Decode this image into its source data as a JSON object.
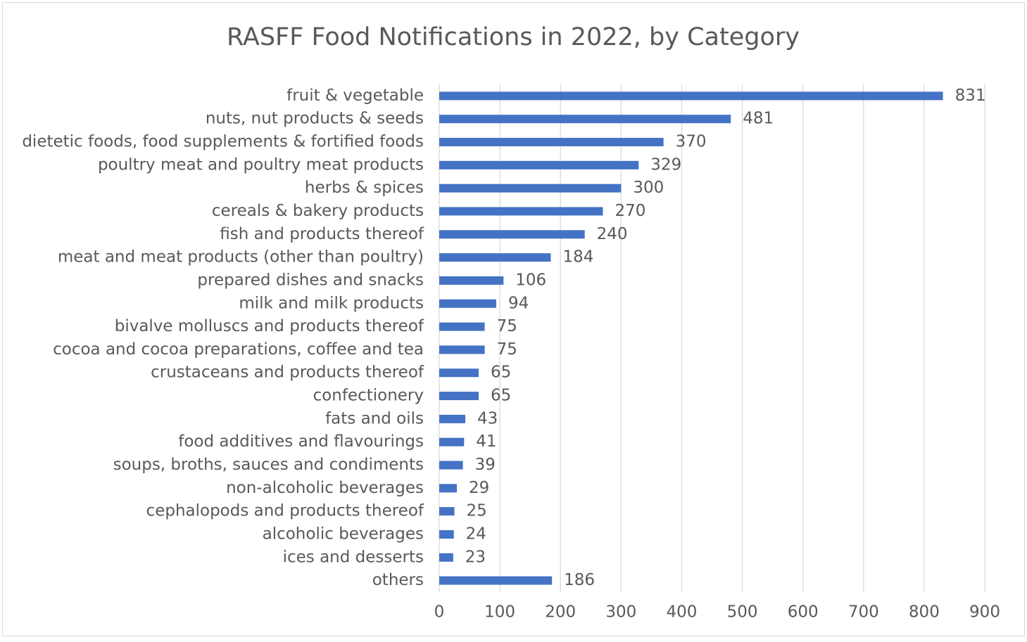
{
  "chart_data": {
    "type": "bar",
    "title": "RASFF Food Notifications in 2022, by Category",
    "categories": [
      "fruit & vegetable",
      "nuts, nut products & seeds",
      "dietetic foods, food supplements & fortified foods",
      "poultry meat and poultry meat products",
      "herbs & spices",
      "cereals & bakery products",
      "fish and products thereof",
      "meat and meat products (other than poultry)",
      "prepared dishes and snacks",
      "milk and milk products",
      "bivalve molluscs and products thereof",
      "cocoa and cocoa preparations, coffee and tea",
      "crustaceans and products thereof",
      "confectionery",
      "fats and oils",
      "food additives and flavourings",
      "soups, broths, sauces and condiments",
      "non-alcoholic beverages",
      "cephalopods and products thereof",
      "alcoholic beverages",
      "ices and desserts",
      "others"
    ],
    "values": [
      831,
      481,
      370,
      329,
      300,
      270,
      240,
      184,
      106,
      94,
      75,
      75,
      65,
      65,
      43,
      41,
      39,
      29,
      25,
      24,
      23,
      186
    ],
    "color": "#4472c4",
    "xlim": [
      0,
      900
    ],
    "xticks": [
      0,
      100,
      200,
      300,
      400,
      500,
      600,
      700,
      800,
      900
    ],
    "grid": true
  }
}
